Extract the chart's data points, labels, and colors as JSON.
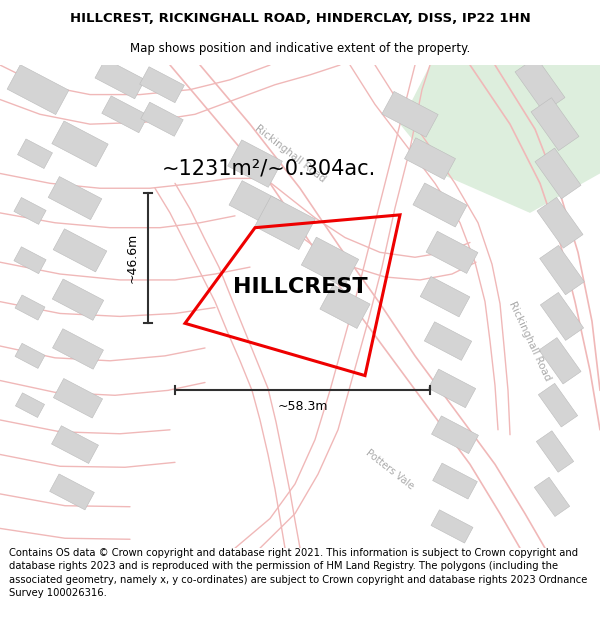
{
  "title_line1": "HILLCREST, RICKINGHALL ROAD, HINDERCLAY, DISS, IP22 1HN",
  "title_line2": "Map shows position and indicative extent of the property.",
  "property_label": "HILLCREST",
  "area_text": "~1231m²/~0.304ac.",
  "dim_width": "~58.3m",
  "dim_height": "~46.6m",
  "footer_text": "Contains OS data © Crown copyright and database right 2021. This information is subject to Crown copyright and database rights 2023 and is reproduced with the permission of HM Land Registry. The polygons (including the associated geometry, namely x, y co-ordinates) are subject to Crown copyright and database rights 2023 Ordnance Survey 100026316.",
  "bg_color": "#ffffff",
  "map_bg": "#f7f7f7",
  "road_color": "#f0b8b8",
  "building_color": "#d4d4d4",
  "building_edge": "#bbbbbb",
  "property_edge_color": "#ee0000",
  "dim_line_color": "#303030",
  "green_area": "#ddeedd",
  "road_label_color": "#aaaaaa",
  "title_fontsize": 9.5,
  "subtitle_fontsize": 8.5,
  "footer_fontsize": 7.2,
  "prop_label_fontsize": 16,
  "area_fontsize": 15
}
